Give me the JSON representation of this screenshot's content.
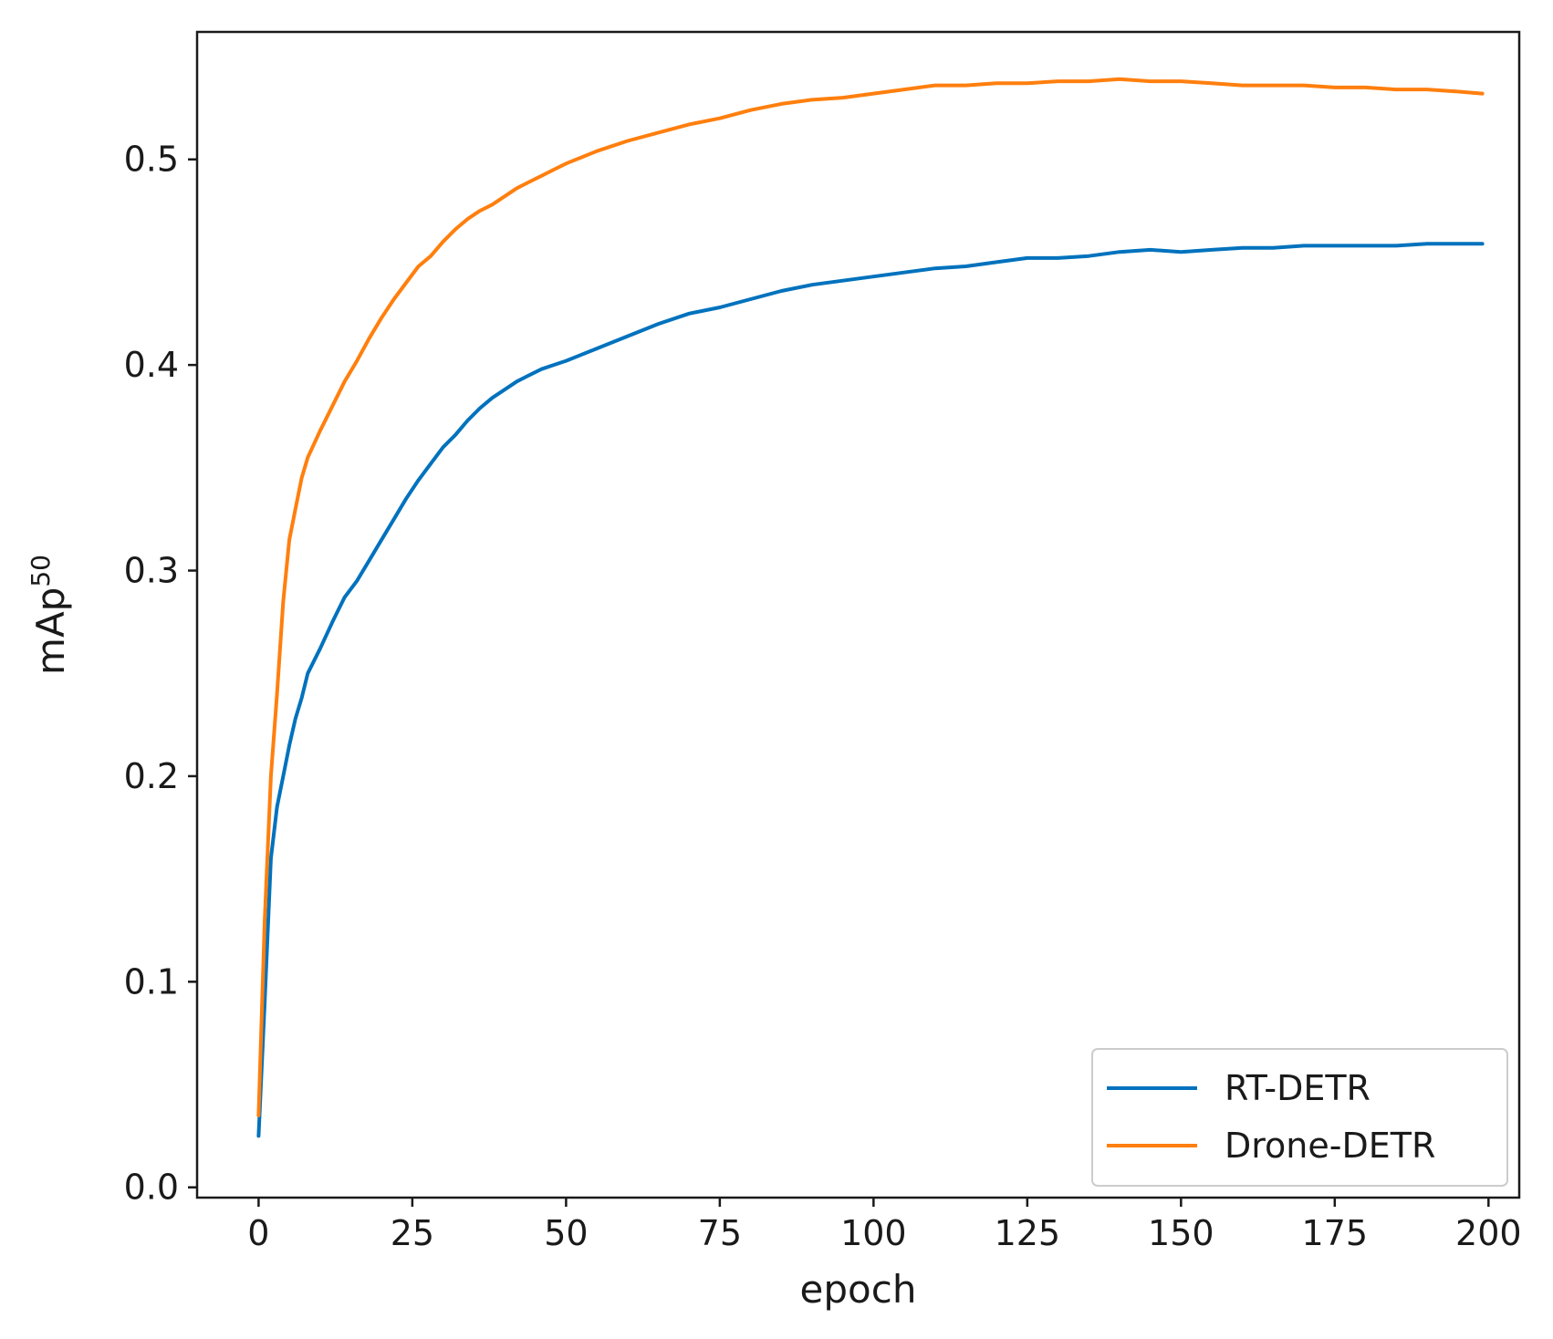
{
  "chart_data": {
    "type": "line",
    "title": "",
    "xlabel": "epoch",
    "ylabel": {
      "base": "mAp",
      "superscript": "50"
    },
    "xlim": [
      -10,
      205
    ],
    "ylim": [
      -0.005,
      0.562
    ],
    "xticks": [
      {
        "value": 0,
        "label": "0"
      },
      {
        "value": 25,
        "label": "25"
      },
      {
        "value": 50,
        "label": "50"
      },
      {
        "value": 75,
        "label": "75"
      },
      {
        "value": 100,
        "label": "100"
      },
      {
        "value": 125,
        "label": "125"
      },
      {
        "value": 150,
        "label": "150"
      },
      {
        "value": 175,
        "label": "175"
      },
      {
        "value": 200,
        "label": "200"
      }
    ],
    "yticks": [
      {
        "value": 0.0,
        "label": "0.0"
      },
      {
        "value": 0.1,
        "label": "0.1"
      },
      {
        "value": 0.2,
        "label": "0.2"
      },
      {
        "value": 0.3,
        "label": "0.3"
      },
      {
        "value": 0.4,
        "label": "0.4"
      },
      {
        "value": 0.5,
        "label": "0.5"
      }
    ],
    "grid": false,
    "legend_position": "lower-right",
    "series": [
      {
        "name": "RT-DETR",
        "color": "#0072bd",
        "x": [
          0,
          1,
          2,
          3,
          4,
          5,
          6,
          7,
          8,
          10,
          12,
          14,
          16,
          18,
          20,
          22,
          24,
          26,
          28,
          30,
          32,
          34,
          36,
          38,
          40,
          42,
          44,
          46,
          48,
          50,
          55,
          60,
          65,
          70,
          75,
          80,
          85,
          90,
          95,
          100,
          105,
          110,
          115,
          120,
          125,
          130,
          135,
          140,
          145,
          150,
          155,
          160,
          165,
          170,
          175,
          180,
          185,
          190,
          195,
          199
        ],
        "y": [
          0.025,
          0.09,
          0.16,
          0.185,
          0.2,
          0.215,
          0.228,
          0.238,
          0.25,
          0.262,
          0.275,
          0.287,
          0.295,
          0.305,
          0.315,
          0.325,
          0.335,
          0.344,
          0.352,
          0.36,
          0.366,
          0.373,
          0.379,
          0.384,
          0.388,
          0.392,
          0.395,
          0.398,
          0.4,
          0.402,
          0.408,
          0.414,
          0.42,
          0.425,
          0.428,
          0.432,
          0.436,
          0.439,
          0.441,
          0.443,
          0.445,
          0.447,
          0.448,
          0.45,
          0.452,
          0.452,
          0.453,
          0.455,
          0.456,
          0.455,
          0.456,
          0.457,
          0.457,
          0.458,
          0.458,
          0.458,
          0.458,
          0.459,
          0.459,
          0.459
        ]
      },
      {
        "name": "Drone-DETR",
        "color": "#ff7f0e",
        "x": [
          0,
          1,
          2,
          3,
          4,
          5,
          6,
          7,
          8,
          10,
          12,
          14,
          16,
          18,
          20,
          22,
          24,
          26,
          28,
          30,
          32,
          34,
          36,
          38,
          40,
          42,
          44,
          46,
          48,
          50,
          55,
          60,
          65,
          70,
          75,
          80,
          85,
          90,
          95,
          100,
          105,
          110,
          115,
          120,
          125,
          130,
          135,
          140,
          145,
          150,
          155,
          160,
          165,
          170,
          175,
          180,
          185,
          190,
          195,
          199
        ],
        "y": [
          0.035,
          0.13,
          0.2,
          0.24,
          0.285,
          0.315,
          0.33,
          0.345,
          0.355,
          0.368,
          0.38,
          0.392,
          0.402,
          0.413,
          0.423,
          0.432,
          0.44,
          0.448,
          0.453,
          0.46,
          0.466,
          0.471,
          0.475,
          0.478,
          0.482,
          0.486,
          0.489,
          0.492,
          0.495,
          0.498,
          0.504,
          0.509,
          0.513,
          0.517,
          0.52,
          0.524,
          0.527,
          0.529,
          0.53,
          0.532,
          0.534,
          0.536,
          0.536,
          0.537,
          0.537,
          0.538,
          0.538,
          0.539,
          0.538,
          0.538,
          0.537,
          0.536,
          0.536,
          0.536,
          0.535,
          0.535,
          0.534,
          0.534,
          0.533,
          0.532
        ]
      }
    ]
  }
}
